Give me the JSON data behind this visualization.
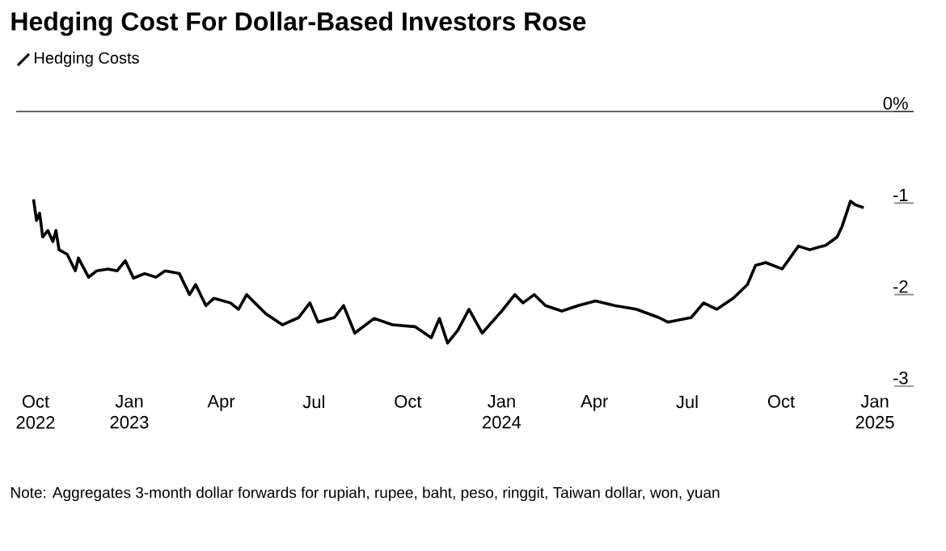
{
  "chart_data": {
    "type": "line",
    "title": "Hedging Cost For Dollar-Based Investors Rose",
    "annotations": [
      "Note: Aggregates 3-month dollar forwards for rupiah, rupee, baht, peso, ringgit, Taiwan dollar, won, yuan"
    ],
    "legend": "top left",
    "xlim": [
      "2022-09-12",
      "2025-02-08"
    ],
    "xticks": [
      {
        "value": "2022-10-01",
        "label": "Oct 2022"
      },
      {
        "value": "2023-01-01",
        "label": "Jan 2023"
      },
      {
        "value": "2023-04-01",
        "label": "Apr"
      },
      {
        "value": "2023-07-01",
        "label": "Jul"
      },
      {
        "value": "2023-10-01",
        "label": "Oct"
      },
      {
        "value": "2024-01-01",
        "label": "Jan 2024"
      },
      {
        "value": "2024-04-01",
        "label": "Apr"
      },
      {
        "value": "2024-07-01",
        "label": "Jul"
      },
      {
        "value": "2024-10-01",
        "label": "Oct"
      },
      {
        "value": "2025-01-01",
        "label": "Jan 2025"
      }
    ],
    "ylim": [
      -3,
      0
    ],
    "yticks": [
      {
        "value": 0,
        "label": "0%"
      },
      -1,
      -2,
      -3
    ],
    "ref_lines": [
      {
        "axis": "y",
        "value": 0,
        "color": "#333333"
      }
    ],
    "series": [
      {
        "name": "Hedging Costs",
        "color": "#000000",
        "x": [
          "2022-09-29",
          "2022-10-02",
          "2022-10-05",
          "2022-10-08",
          "2022-10-13",
          "2022-10-18",
          "2022-10-21",
          "2022-10-24",
          "2022-11-01",
          "2022-11-09",
          "2022-11-12",
          "2022-11-22",
          "2022-11-30",
          "2022-12-11",
          "2022-12-20",
          "2022-12-28",
          "2023-01-05",
          "2023-01-16",
          "2023-01-27",
          "2023-02-05",
          "2023-02-19",
          "2023-03-01",
          "2023-03-07",
          "2023-03-17",
          "2023-03-25",
          "2023-04-10",
          "2023-04-18",
          "2023-04-26",
          "2023-05-04",
          "2023-05-15",
          "2023-05-31",
          "2023-06-16",
          "2023-06-27",
          "2023-07-05",
          "2023-07-21",
          "2023-07-30",
          "2023-08-10",
          "2023-08-29",
          "2023-09-16",
          "2023-10-08",
          "2023-10-24",
          "2023-11-01",
          "2023-11-09",
          "2023-11-19",
          "2023-11-30",
          "2023-12-13",
          "2024-01-01",
          "2024-01-14",
          "2024-01-22",
          "2024-02-02",
          "2024-02-13",
          "2024-02-29",
          "2024-03-16",
          "2024-04-02",
          "2024-04-21",
          "2024-05-12",
          "2024-06-03",
          "2024-06-12",
          "2024-07-05",
          "2024-07-17",
          "2024-07-30",
          "2024-08-15",
          "2024-08-29",
          "2024-09-06",
          "2024-09-16",
          "2024-10-02",
          "2024-10-18",
          "2024-10-29",
          "2024-11-14",
          "2024-11-25",
          "2024-11-30",
          "2024-12-08",
          "2024-12-13",
          "2024-12-21"
        ],
        "values": [
          -0.96,
          -1.19,
          -1.11,
          -1.37,
          -1.3,
          -1.42,
          -1.3,
          -1.51,
          -1.56,
          -1.74,
          -1.6,
          -1.81,
          -1.74,
          -1.72,
          -1.74,
          -1.63,
          -1.82,
          -1.77,
          -1.81,
          -1.74,
          -1.77,
          -2.0,
          -1.89,
          -2.12,
          -2.04,
          -2.09,
          -2.16,
          -2.0,
          -2.09,
          -2.21,
          -2.33,
          -2.25,
          -2.09,
          -2.3,
          -2.25,
          -2.12,
          -2.42,
          -2.26,
          -2.33,
          -2.35,
          -2.47,
          -2.26,
          -2.53,
          -2.39,
          -2.16,
          -2.42,
          -2.18,
          -2.0,
          -2.09,
          -2.0,
          -2.12,
          -2.18,
          -2.12,
          -2.07,
          -2.12,
          -2.16,
          -2.25,
          -2.3,
          -2.25,
          -2.09,
          -2.16,
          -2.04,
          -1.89,
          -1.68,
          -1.65,
          -1.72,
          -1.47,
          -1.51,
          -1.46,
          -1.37,
          -1.25,
          -0.98,
          -1.02,
          -1.05
        ]
      }
    ]
  }
}
